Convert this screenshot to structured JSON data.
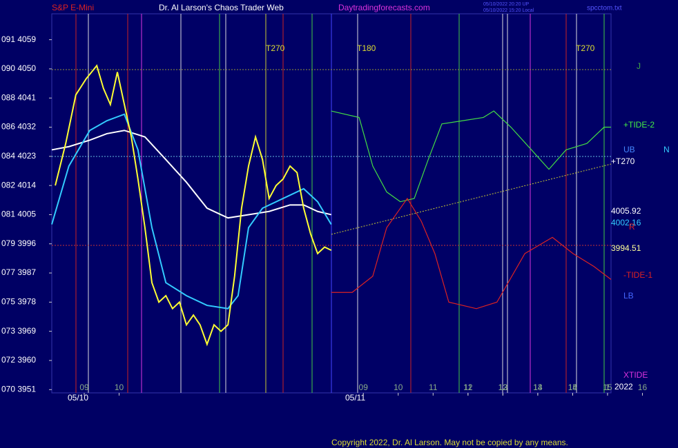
{
  "header": {
    "left": "S&P E-Mini",
    "center": "Dr. Al Larson's Chaos Trader Web",
    "site": "Daytradingforecasts.com",
    "stamp1": "05/10/2022 20:20 UP",
    "stamp2": "05/10/2022 15:20 Local",
    "file": "spcctom.txt"
  },
  "footer": "Copyright 2022, Dr. Al Larson. May not be copied by any means.",
  "labels": {
    "t1": "T270",
    "t2": "T180",
    "t3": "T270",
    "j": "J",
    "tide2": "+TIDE-2",
    "ub": "UB",
    "n": "N",
    "t270": "+T270",
    "v1": "4005.92",
    "v2": "4002.16",
    "r": "R",
    "v3": "3994.51",
    "tide1": "-TIDE-1",
    "lb": "LB",
    "xtide": "XTIDE",
    "year": "2022",
    "d1": "05/10",
    "d2": "05/11"
  },
  "chart_data": {
    "type": "line",
    "xlim": [
      -0.93,
      15.1
    ],
    "xticks": [
      {
        "value": 0,
        "label": "09"
      },
      {
        "value": 1,
        "label": "10"
      },
      11,
      12,
      13,
      14,
      15,
      16,
      {
        "value": 8,
        "label": "09"
      },
      {
        "value": 9,
        "label": "10"
      },
      {
        "value": 10,
        "label": "11"
      },
      {
        "value": 11,
        "label": "12"
      },
      {
        "value": 12,
        "label": "13"
      },
      {
        "value": 13,
        "label": "14"
      },
      {
        "value": 14,
        "label": "15"
      },
      {
        "value": 15,
        "label": "1"
      }
    ],
    "ylim": [
      3950,
      4067
    ],
    "yticks": [
      {
        "value": 4059,
        "label": "091 4059"
      },
      {
        "value": 4050,
        "label": "090 4050"
      },
      {
        "value": 4041,
        "label": "088 4041"
      },
      {
        "value": 4032,
        "label": "086 4032"
      },
      {
        "value": 4023,
        "label": "084 4023"
      },
      {
        "value": 4014,
        "label": "082 4014"
      },
      {
        "value": 4005,
        "label": "081 4005"
      },
      {
        "value": 3996,
        "label": "079 3996"
      },
      {
        "value": 3987,
        "label": "077 3987"
      },
      {
        "value": 3978,
        "label": "075 3978"
      },
      {
        "value": 3969,
        "label": "073 3969"
      },
      {
        "value": 3960,
        "label": "072 3960"
      },
      {
        "value": 3951,
        "label": "070 3951"
      }
    ],
    "series": [
      {
        "color": "#ffffff",
        "x": [
          -0.93,
          -0.44,
          0.16,
          0.65,
          1.15,
          1.74,
          2.34,
          2.93,
          3.52,
          4.12,
          4.71,
          5.3,
          5.9,
          6.29,
          6.69,
          7.08
        ],
        "values": [
          4025,
          4026,
          4028,
          4030,
          4031,
          4029,
          4022,
          4015,
          4007,
          4004,
          4005,
          4006,
          4008,
          4008,
          4006,
          4005
        ]
      },
      {
        "color": "#33ccff",
        "x": [
          -0.93,
          -0.44,
          0.16,
          0.65,
          1.15,
          1.54,
          1.94,
          2.34,
          2.93,
          3.52,
          4.12,
          4.41,
          4.71,
          5.11,
          5.7,
          6.29,
          6.69,
          7.08
        ],
        "values": [
          4002,
          4020,
          4031,
          4034,
          4036,
          4025,
          4001,
          3984,
          3980,
          3977,
          3976,
          3980,
          4001,
          4007,
          4010,
          4013,
          4009,
          4002
        ]
      },
      {
        "color": "#ffff33",
        "x": [
          -0.83,
          -0.53,
          -0.24,
          0.06,
          0.36,
          0.55,
          0.75,
          0.95,
          1.15,
          1.35,
          1.54,
          1.74,
          1.94,
          2.14,
          2.34,
          2.53,
          2.73,
          2.93,
          3.13,
          3.32,
          3.52,
          3.72,
          3.92,
          4.12,
          4.31,
          4.51,
          4.71,
          4.91,
          5.11,
          5.3,
          5.5,
          5.7,
          5.9,
          6.1,
          6.29,
          6.49,
          6.69,
          6.89,
          7.08
        ],
        "values": [
          4014,
          4027,
          4042,
          4047,
          4051,
          4044,
          4039,
          4049,
          4039,
          4029,
          4016,
          4001,
          3984,
          3978,
          3980,
          3976,
          3978,
          3971,
          3974,
          3971,
          3965,
          3971,
          3969,
          3971,
          3986,
          4007,
          4020,
          4029,
          4022,
          4010,
          4014,
          4016,
          4020,
          4018,
          4007,
          3999,
          3993,
          3995,
          3994
        ]
      },
      {
        "color": "#44dd44",
        "x": [
          7.08,
          7.88,
          8.27,
          8.67,
          9.06,
          9.46,
          9.86,
          10.25,
          10.85,
          11.44,
          11.74,
          12.23,
          12.82,
          13.32,
          13.81,
          14.41,
          14.9,
          15.1
        ],
        "values": [
          4037,
          4035,
          4020,
          4012,
          4009,
          4010,
          4022,
          4033,
          4034,
          4035,
          4037,
          4032,
          4025,
          4019,
          4025,
          4027,
          4032,
          4032
        ]
      },
      {
        "color": "#dd2222",
        "x": [
          7.08,
          7.68,
          8.27,
          8.67,
          9.26,
          9.66,
          10.05,
          10.45,
          11.24,
          11.83,
          12.63,
          13.42,
          14.01,
          14.61,
          15.1
        ],
        "values": [
          3981,
          3981,
          3986,
          4001,
          4010,
          4003,
          3993,
          3978,
          3976,
          3978,
          3993,
          3998,
          3993,
          3989,
          3985
        ]
      }
    ]
  }
}
